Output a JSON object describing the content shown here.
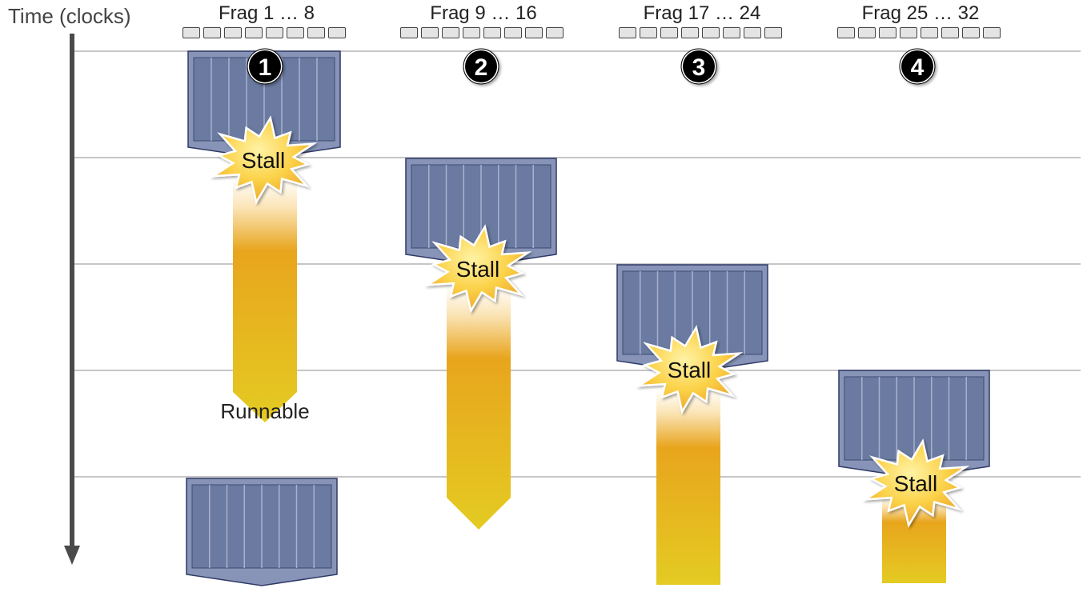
{
  "axis": {
    "label": "Time (clocks)"
  },
  "groups": [
    {
      "number": "1",
      "title": "Frag 1 … 8"
    },
    {
      "number": "2",
      "title": "Frag 9 … 16"
    },
    {
      "number": "3",
      "title": "Frag 17 … 24"
    },
    {
      "number": "4",
      "title": "Frag 25 … 32"
    }
  ],
  "labels": {
    "stall": "Stall",
    "runnable": "Runnable"
  },
  "colors": {
    "block_fill": "#7180a3",
    "block_outer": "#8794b8",
    "block_border": "#2f3a66",
    "lane_dark": "#6a7aa0",
    "stall_fill": "#f6c233",
    "arrow_orange": "#e8a51d",
    "arrow_yellow": "#e4cb22",
    "gridline": "#c6c6c6",
    "axis": "#4a4a4a"
  }
}
